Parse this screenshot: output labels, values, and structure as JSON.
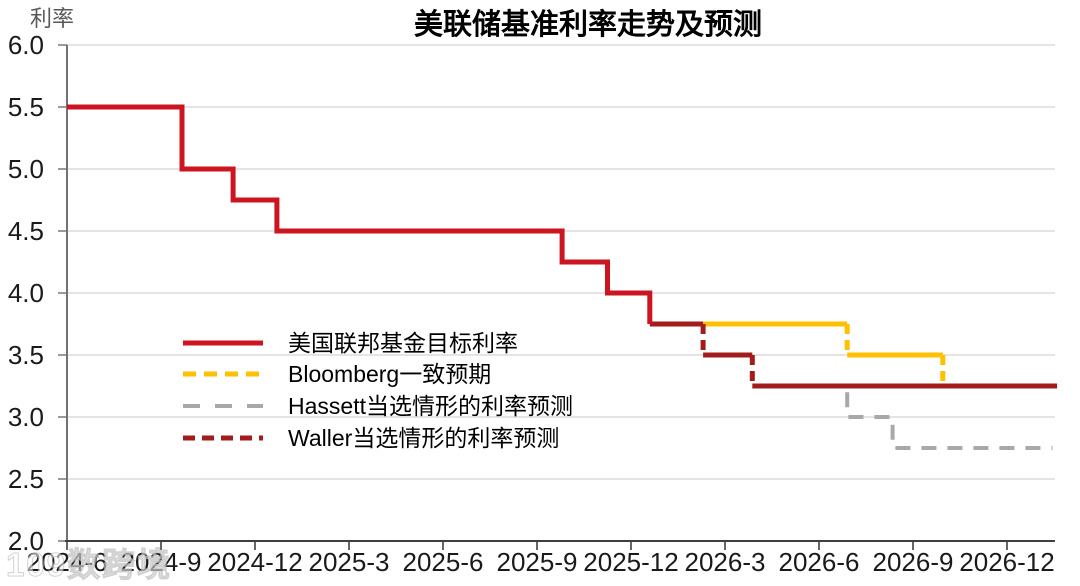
{
  "chart_data": {
    "type": "line",
    "subtype": "step",
    "title": "美联储基准利率走势及预测",
    "y_axis_unit_label": "利率",
    "ylim": [
      2.0,
      6.0
    ],
    "yticks": [
      6.0,
      5.5,
      5.0,
      4.5,
      4.0,
      3.5,
      3.0,
      2.5,
      2.0
    ],
    "grid": true,
    "legend_position": "center-left",
    "x_unit": "months_after_2024-06",
    "xticks": [
      {
        "label": "2024-6",
        "month": 0
      },
      {
        "label": "2024-9",
        "month": 3
      },
      {
        "label": "2024-12",
        "month": 6
      },
      {
        "label": "2025-3",
        "month": 9
      },
      {
        "label": "2025-6",
        "month": 12
      },
      {
        "label": "2025-9",
        "month": 15
      },
      {
        "label": "2025-12",
        "month": 18
      },
      {
        "label": "2026-3",
        "month": 21
      },
      {
        "label": "2026-6",
        "month": 24
      },
      {
        "label": "2026-9",
        "month": 27
      },
      {
        "label": "2026-12",
        "month": 30
      }
    ],
    "series": [
      {
        "id": "fed-funds-target",
        "label": "美国联邦基金目标利率",
        "color": "#CD1421",
        "width": 5,
        "dash": "10 6",
        "legend_dash": null,
        "segments": [
          {
            "dashed": false,
            "points": [
              [
                0,
                5.5
              ],
              [
                3.67,
                5.5
              ],
              [
                3.67,
                5.0
              ],
              [
                5.3,
                5.0
              ],
              [
                5.3,
                4.75
              ],
              [
                6.7,
                4.75
              ],
              [
                6.7,
                4.5
              ],
              [
                15.8,
                4.5
              ],
              [
                15.8,
                4.25
              ],
              [
                17.25,
                4.25
              ],
              [
                17.25,
                4.0
              ],
              [
                18.6,
                4.0
              ],
              [
                18.6,
                3.75
              ]
            ]
          }
        ]
      },
      {
        "id": "bloomberg-consensus",
        "label": "Bloomberg一致预期",
        "color": "#FFC000",
        "width": 5,
        "dash": "10 6",
        "legend_dash": "13 8",
        "segments": [
          {
            "dashed": false,
            "points": [
              [
                20.3,
                3.75
              ],
              [
                24.9,
                3.75
              ]
            ]
          },
          {
            "dashed": true,
            "points": [
              [
                24.9,
                3.75
              ],
              [
                24.9,
                3.5
              ]
            ]
          },
          {
            "dashed": false,
            "points": [
              [
                24.9,
                3.5
              ],
              [
                27.95,
                3.5
              ]
            ]
          },
          {
            "dashed": true,
            "points": [
              [
                27.95,
                3.5
              ],
              [
                27.95,
                3.25
              ]
            ]
          }
        ]
      },
      {
        "id": "hassett-scenario",
        "label": "Hassett当选情形的利率预测",
        "color": "#A8A8A8",
        "width": 4,
        "dash": "15 11",
        "legend_dash": "17 15",
        "segments": [
          {
            "dashed": true,
            "points": [
              [
                24.9,
                3.2
              ],
              [
                24.9,
                3.0
              ],
              [
                26.35,
                3.0
              ],
              [
                26.35,
                2.75
              ],
              [
                31.45,
                2.75
              ]
            ]
          }
        ]
      },
      {
        "id": "waller-scenario",
        "label": "Waller当选情形的利率预测",
        "color": "#A31C1C",
        "width": 5,
        "dash": "10 6",
        "legend_dash": "12 7",
        "segments": [
          {
            "dashed": false,
            "points": [
              [
                18.6,
                3.75
              ],
              [
                20.3,
                3.75
              ]
            ]
          },
          {
            "dashed": true,
            "points": [
              [
                20.3,
                3.75
              ],
              [
                20.3,
                3.5
              ]
            ]
          },
          {
            "dashed": false,
            "points": [
              [
                20.3,
                3.5
              ],
              [
                21.87,
                3.5
              ]
            ]
          },
          {
            "dashed": true,
            "points": [
              [
                21.87,
                3.5
              ],
              [
                21.87,
                3.25
              ]
            ]
          },
          {
            "dashed": false,
            "points": [
              [
                21.87,
                3.25
              ],
              [
                31.6,
                3.25
              ]
            ]
          }
        ]
      }
    ]
  },
  "watermark": {
    "text": "109数跨境"
  }
}
